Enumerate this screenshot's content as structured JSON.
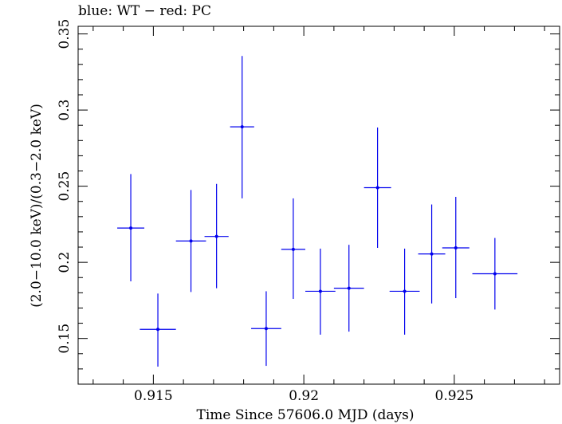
{
  "chart_data": {
    "type": "scatter",
    "title": "blue: WT − red: PC",
    "xlabel": "Time Since 57606.0 MJD (days)",
    "ylabel": "(2.0−10.0 keV)/(0.3−2.0 keV)",
    "xlim": [
      0.9125,
      0.9285
    ],
    "ylim": [
      0.12,
      0.355
    ],
    "xticks": [
      {
        "value": 0.915,
        "label": "0.915"
      },
      {
        "value": 0.92,
        "label": "0.92"
      },
      {
        "value": 0.925,
        "label": "0.925"
      }
    ],
    "yticks": [
      {
        "value": 0.15,
        "label": "0.15"
      },
      {
        "value": 0.2,
        "label": "0.2"
      },
      {
        "value": 0.25,
        "label": "0.25"
      },
      {
        "value": 0.3,
        "label": "0.3"
      },
      {
        "value": 0.35,
        "label": "0.35"
      }
    ],
    "grid": false,
    "color": "#0000ee",
    "series": [
      {
        "points": [
          {
            "x": 0.91425,
            "y": 0.2225,
            "xerr": 0.00045,
            "yerr_low": 0.035,
            "yerr_high": 0.0355
          },
          {
            "x": 0.91515,
            "y": 0.156,
            "xerr": 0.0006,
            "yerr_low": 0.0245,
            "yerr_high": 0.0235
          },
          {
            "x": 0.91625,
            "y": 0.214,
            "xerr": 0.0005,
            "yerr_low": 0.0335,
            "yerr_high": 0.0335
          },
          {
            "x": 0.9171,
            "y": 0.217,
            "xerr": 0.0004,
            "yerr_low": 0.034,
            "yerr_high": 0.0345
          },
          {
            "x": 0.91795,
            "y": 0.289,
            "xerr": 0.0004,
            "yerr_low": 0.047,
            "yerr_high": 0.0465
          },
          {
            "x": 0.91875,
            "y": 0.1565,
            "xerr": 0.0005,
            "yerr_low": 0.0245,
            "yerr_high": 0.0245
          },
          {
            "x": 0.91965,
            "y": 0.2085,
            "xerr": 0.0004,
            "yerr_low": 0.0325,
            "yerr_high": 0.0335
          },
          {
            "x": 0.92055,
            "y": 0.181,
            "xerr": 0.0005,
            "yerr_low": 0.0285,
            "yerr_high": 0.028
          },
          {
            "x": 0.9215,
            "y": 0.183,
            "xerr": 0.0005,
            "yerr_low": 0.0285,
            "yerr_high": 0.0285
          },
          {
            "x": 0.92245,
            "y": 0.249,
            "xerr": 0.00045,
            "yerr_low": 0.0395,
            "yerr_high": 0.0395
          },
          {
            "x": 0.92335,
            "y": 0.181,
            "xerr": 0.0005,
            "yerr_low": 0.0285,
            "yerr_high": 0.028
          },
          {
            "x": 0.92425,
            "y": 0.2055,
            "xerr": 0.00045,
            "yerr_low": 0.0325,
            "yerr_high": 0.0325
          },
          {
            "x": 0.92505,
            "y": 0.2095,
            "xerr": 0.00045,
            "yerr_low": 0.033,
            "yerr_high": 0.0335
          },
          {
            "x": 0.92635,
            "y": 0.1925,
            "xerr": 0.00075,
            "yerr_low": 0.0235,
            "yerr_high": 0.0235
          }
        ]
      }
    ]
  }
}
